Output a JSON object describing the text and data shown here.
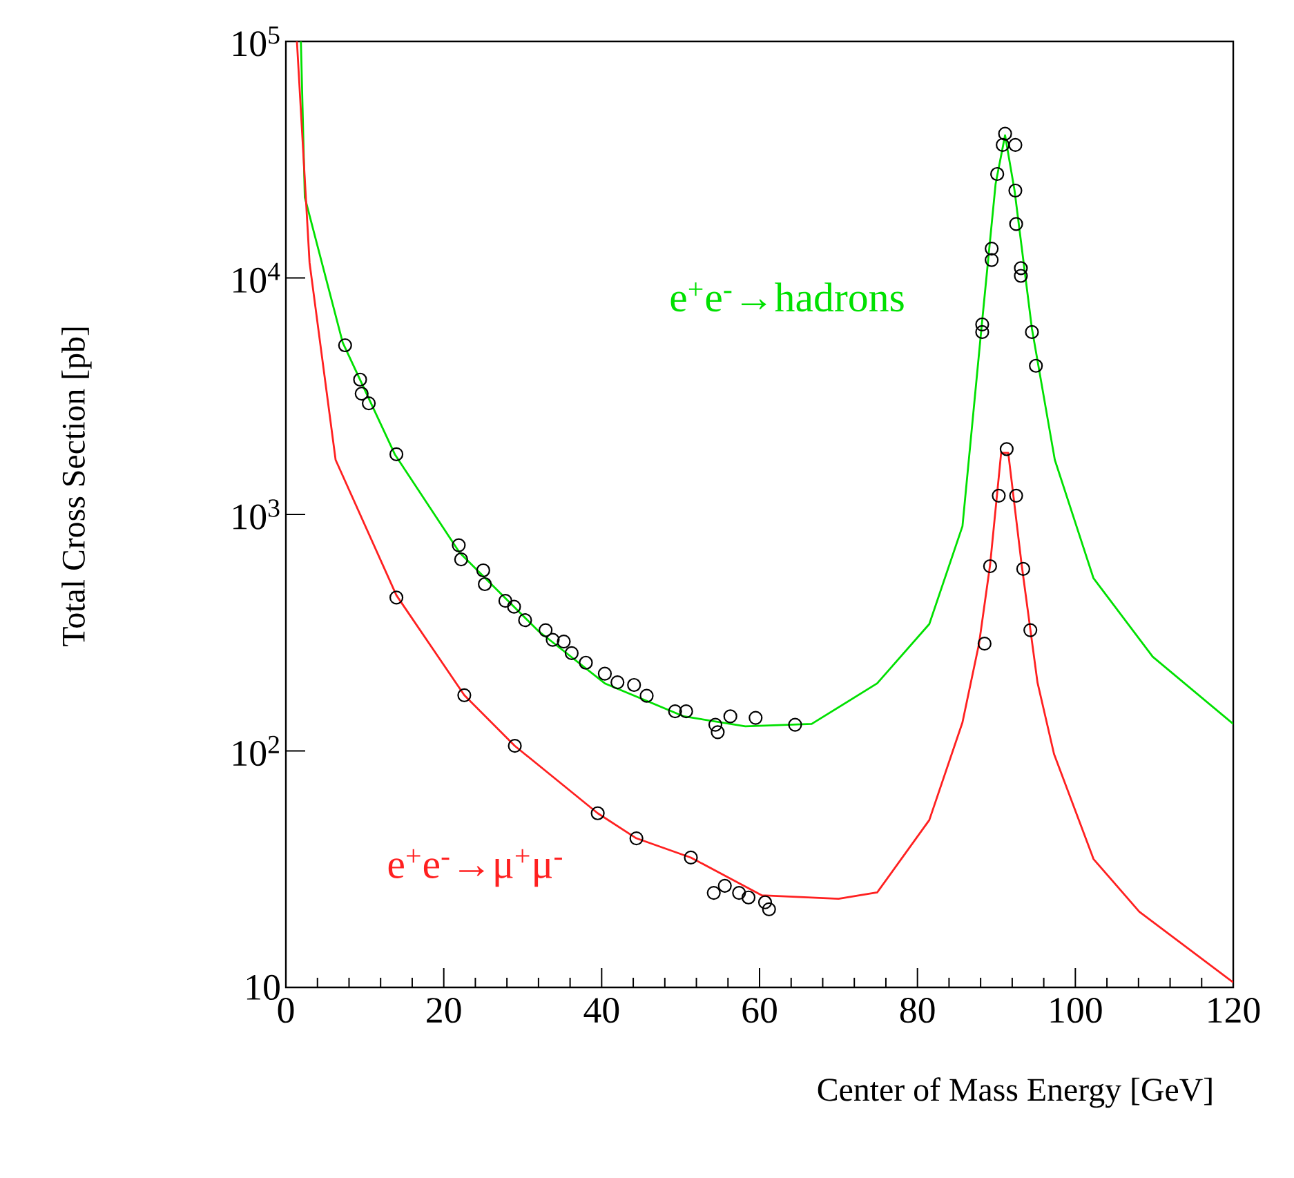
{
  "chart_data": {
    "type": "line",
    "xlabel": "Center of Mass Energy   [GeV]",
    "ylabel": "Total Cross Section  [pb]",
    "log": "y",
    "xlim": [
      0,
      120
    ],
    "ylim": [
      10,
      100000
    ],
    "xticks": [
      0,
      20,
      40,
      60,
      80,
      100,
      120
    ],
    "yticks": [
      {
        "value": 10,
        "label": "10"
      },
      {
        "value": 100,
        "label": "10$^{2}$"
      },
      {
        "value": 1000,
        "label": "10$^{3}$"
      },
      {
        "value": 10000,
        "label": "10$^{4}$"
      },
      {
        "value": 100000,
        "label": "10$^{5}$"
      }
    ],
    "series": [
      {
        "name": "e$^{+}$e$^{-}$→hadrons",
        "marker": "none",
        "color": "#00e000",
        "x": [
          1.9,
          2.4,
          7.2,
          13.8,
          22.0,
          32.0,
          40.4,
          50.4,
          58.2,
          66.6,
          74.9,
          81.5,
          85.7,
          88.1,
          89.9,
          91.1,
          92.3,
          94.5,
          97.4,
          102.3,
          109.8,
          120
        ],
        "values": [
          100000,
          21900,
          5330,
          1795,
          690,
          321,
          193,
          140,
          127,
          130,
          193,
          344,
          891,
          6100,
          25000,
          40100,
          23400,
          6100,
          1700,
          537,
          250,
          130
        ]
      },
      {
        "name": "e$^{+}$e$^{-}$→μ$^{+}$μ$^{-}$",
        "marker": "none",
        "color": "#ff2020",
        "x": [
          1.4,
          3.0,
          6.3,
          14.0,
          22.6,
          29.0,
          39.5,
          44.4,
          51.3,
          60.3,
          70.0,
          74.9,
          81.5,
          85.7,
          87.8,
          89.2,
          90.6,
          91.5,
          93.2,
          95.2,
          97.3,
          102.3,
          108.1,
          120
        ],
        "values": [
          100000,
          11600,
          1700,
          455,
          172,
          105,
          54.5,
          42.7,
          35.4,
          24.5,
          23.7,
          25.2,
          51,
          132,
          284,
          612,
          1820,
          1820,
          612,
          195,
          97,
          34.9,
          20.9,
          10.5
        ]
      },
      {
        "type": "scatter",
        "marker": "circle",
        "color": "#000000",
        "x": [
          7.5,
          9.4,
          9.6,
          10.5,
          14.0,
          21.9,
          22.2,
          25.0,
          25.2,
          27.8,
          28.9,
          30.3,
          32.9,
          33.8,
          35.2,
          36.2,
          38.0,
          40.4,
          42.0,
          44.1,
          45.7,
          49.3,
          50.7,
          54.4,
          54.7,
          56.3,
          59.5,
          64.5
        ],
        "values": [
          5190,
          3715,
          3240,
          2950,
          1795,
          741,
          645,
          580,
          507,
          431,
          407,
          357,
          324,
          295,
          290,
          259,
          236,
          212,
          195,
          190,
          171,
          147,
          147,
          129,
          120,
          140,
          138,
          129
        ]
      },
      {
        "type": "scatter",
        "marker": "circle",
        "color": "#000000",
        "x": [
          88.2,
          88.2,
          89.4,
          89.4,
          90.1,
          90.8,
          91.1,
          92.4,
          92.4,
          92.5,
          93.1,
          93.1,
          94.5,
          95.0
        ],
        "values": [
          6360,
          5900,
          13300,
          11900,
          27500,
          36500,
          40700,
          36500,
          23400,
          16900,
          11000,
          10200,
          5900,
          4250
        ]
      },
      {
        "type": "scatter",
        "marker": "circle",
        "color": "#000000",
        "x": [
          14.0,
          22.6,
          29.0,
          39.5,
          44.4,
          51.3,
          54.2,
          55.6,
          57.4,
          58.6,
          60.7,
          61.2
        ],
        "values": [
          445,
          172,
          105,
          54.5,
          42.7,
          35.4,
          25.1,
          26.9,
          25.1,
          24,
          22.9,
          21.4
        ]
      },
      {
        "type": "scatter",
        "marker": "circle",
        "color": "#000000",
        "x": [
          88.5,
          89.2,
          90.3,
          91.3,
          92.5,
          93.4,
          94.3
        ],
        "values": [
          284,
          604,
          1200,
          1890,
          1200,
          588,
          324
        ]
      }
    ]
  }
}
